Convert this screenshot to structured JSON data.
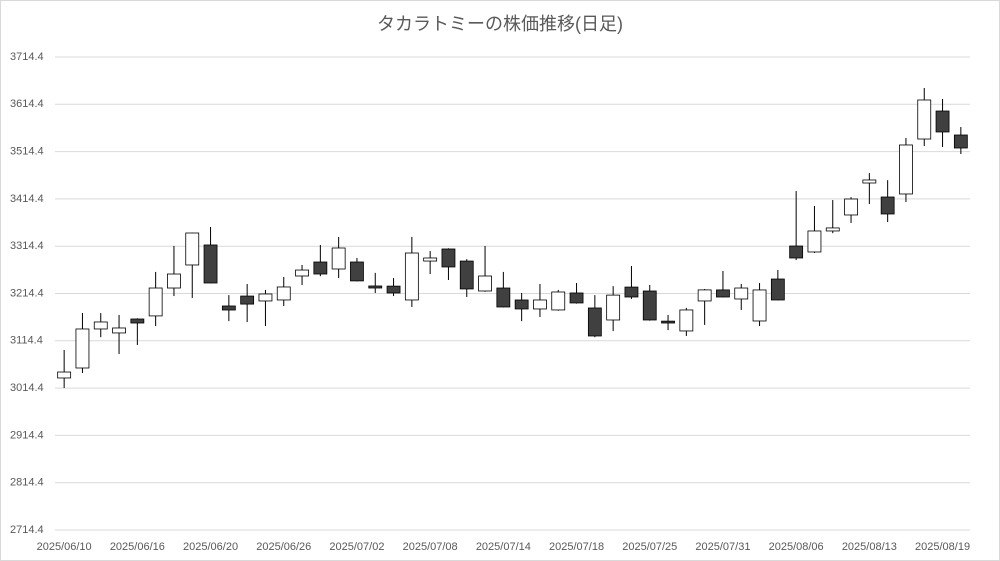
{
  "chart_data": {
    "type": "candlestick",
    "title": "タカラトミーの株価推移(日足)",
    "categories": [
      "2025/06/10",
      null,
      null,
      null,
      "2025/06/16",
      null,
      null,
      null,
      "2025/06/20",
      null,
      null,
      null,
      "2025/06/26",
      null,
      null,
      null,
      "2025/07/02",
      null,
      null,
      null,
      "2025/07/08",
      null,
      null,
      null,
      "2025/07/14",
      null,
      null,
      null,
      "2025/07/18",
      null,
      null,
      null,
      "2025/07/25",
      null,
      null,
      null,
      "2025/07/31",
      null,
      null,
      null,
      "2025/08/06",
      null,
      null,
      null,
      "2025/08/13",
      null,
      null,
      null,
      "2025/08/19",
      null
    ],
    "open": [
      3035.8,
      3056.9,
      3139.4,
      3131.0,
      3160.5,
      3167.0,
      3226.0,
      3274.7,
      3317.0,
      3188.0,
      3209.0,
      3198.6,
      3200.7,
      3251.4,
      3281.0,
      3266.2,
      3281.0,
      3230.3,
      3230.0,
      3200.7,
      3283.0,
      3308.5,
      3283.0,
      3219.7,
      3226.0,
      3200.7,
      3181.7,
      3179.6,
      3215.5,
      3183.8,
      3158.4,
      3228.0,
      3219.7,
      3156.0,
      3135.2,
      3198.6,
      3222.0,
      3202.8,
      3156.3,
      3245.0,
      3314.8,
      3302.2,
      3346.6,
      3380.4,
      3448.0,
      3418.4,
      3424.8,
      3541.0,
      3600.2,
      3549.5
    ],
    "high": [
      3095.0,
      3173.2,
      3173.0,
      3169.0,
      3162.0,
      3260.0,
      3315.0,
      3343.0,
      3355.0,
      3211.0,
      3234.5,
      3222.0,
      3249.3,
      3274.7,
      3317.0,
      3333.9,
      3289.5,
      3258.0,
      3247.0,
      3334.0,
      3304.0,
      3310.0,
      3287.0,
      3315.0,
      3260.0,
      3215.5,
      3234.5,
      3222.0,
      3236.6,
      3211.0,
      3230.0,
      3272.6,
      3232.4,
      3169.0,
      3184.0,
      3224.0,
      3262.0,
      3234.5,
      3236.6,
      3264.0,
      3431.0,
      3399.4,
      3412.0,
      3418.0,
      3469.0,
      3454.0,
      3543.2,
      3648.9,
      3625.6,
      3566.4
    ],
    "low": [
      3014.7,
      3046.4,
      3122.0,
      3086.5,
      3105.6,
      3145.7,
      3209.0,
      3205.0,
      3236.0,
      3156.0,
      3154.0,
      3145.7,
      3188.0,
      3232.4,
      3251.0,
      3247.0,
      3240.0,
      3215.5,
      3209.0,
      3186.0,
      3255.6,
      3243.0,
      3207.0,
      3218.0,
      3185.0,
      3156.0,
      3164.8,
      3178.0,
      3193.0,
      3122.0,
      3135.0,
      3203.0,
      3157.0,
      3137.0,
      3124.6,
      3148.0,
      3206.0,
      3179.6,
      3145.7,
      3200.0,
      3285.0,
      3300.0,
      3342.0,
      3363.5,
      3403.6,
      3365.6,
      3407.9,
      3526.3,
      3524.0,
      3509.3
    ],
    "close": [
      3048.4,
      3139.4,
      3154.2,
      3141.5,
      3152.0,
      3226.0,
      3255.6,
      3342.3,
      3236.6,
      3179.5,
      3192.0,
      3213.4,
      3228.2,
      3264.0,
      3255.6,
      3310.6,
      3241.0,
      3226.0,
      3215.5,
      3300.0,
      3289.5,
      3270.5,
      3224.0,
      3251.4,
      3185.9,
      3181.7,
      3200.7,
      3217.6,
      3194.4,
      3124.6,
      3211.0,
      3207.0,
      3158.4,
      3152.0,
      3179.6,
      3222.0,
      3207.0,
      3226.0,
      3221.9,
      3200.7,
      3289.5,
      3346.6,
      3353.0,
      3414.2,
      3454.4,
      3382.5,
      3528.4,
      3623.5,
      3555.9,
      3522.0
    ],
    "up_color": "#ffffff",
    "down_color": "#404040",
    "ylim": [
      2714.4,
      3714.4
    ],
    "yticks": [
      2714.4,
      2814.4,
      2914.4,
      3014.4,
      3114.4,
      3214.4,
      3314.4,
      3414.4,
      3514.4,
      3614.4,
      3714.4
    ],
    "grid": true
  }
}
